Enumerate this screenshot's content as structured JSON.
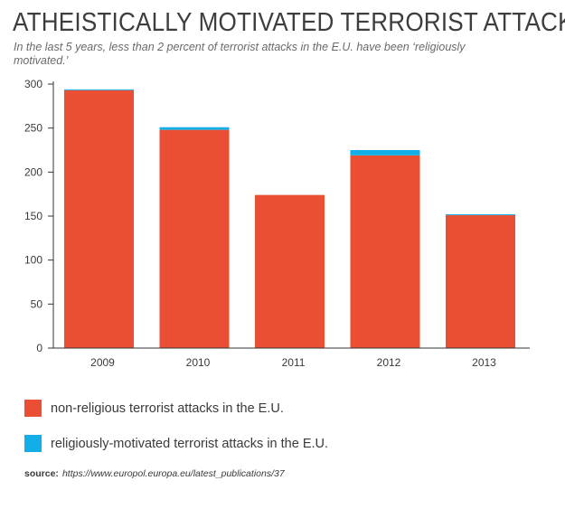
{
  "header": {
    "title": "ATHEISTICALLY MOTIVATED TERRORIST ATTACKS",
    "subtitle": "In the last 5 years, less than 2 percent of terrorist attacks in the E.U. have been ‘religiously motivated.’"
  },
  "colors": {
    "non_religious": "#ea4f33",
    "religious": "#12aee8",
    "axis": "#333333",
    "text": "#3a3a3a"
  },
  "legend": [
    {
      "label": "non-religious terrorist attacks in the E.U.",
      "color": "#ea4f33"
    },
    {
      "label": "religiously-motivated terrorist attacks in the E.U.",
      "color": "#12aee8"
    }
  ],
  "source": {
    "label": "source:",
    "url": "https://www.europol.europa.eu/latest_publications/37"
  },
  "chart_data": {
    "type": "bar",
    "stacked": true,
    "categories": [
      "2009",
      "2010",
      "2011",
      "2012",
      "2013"
    ],
    "series": [
      {
        "name": "non-religious terrorist attacks in the E.U.",
        "color": "#ea4f33",
        "values": [
          293,
          248,
          174,
          219,
          151
        ]
      },
      {
        "name": "religiously-motivated terrorist attacks in the E.U.",
        "color": "#12aee8",
        "values": [
          1,
          3,
          0,
          6,
          1
        ]
      }
    ],
    "ylim": [
      0,
      300
    ],
    "yticks": [
      0,
      50,
      100,
      150,
      200,
      250,
      300
    ],
    "grid": false,
    "legend_position": "bottom"
  }
}
